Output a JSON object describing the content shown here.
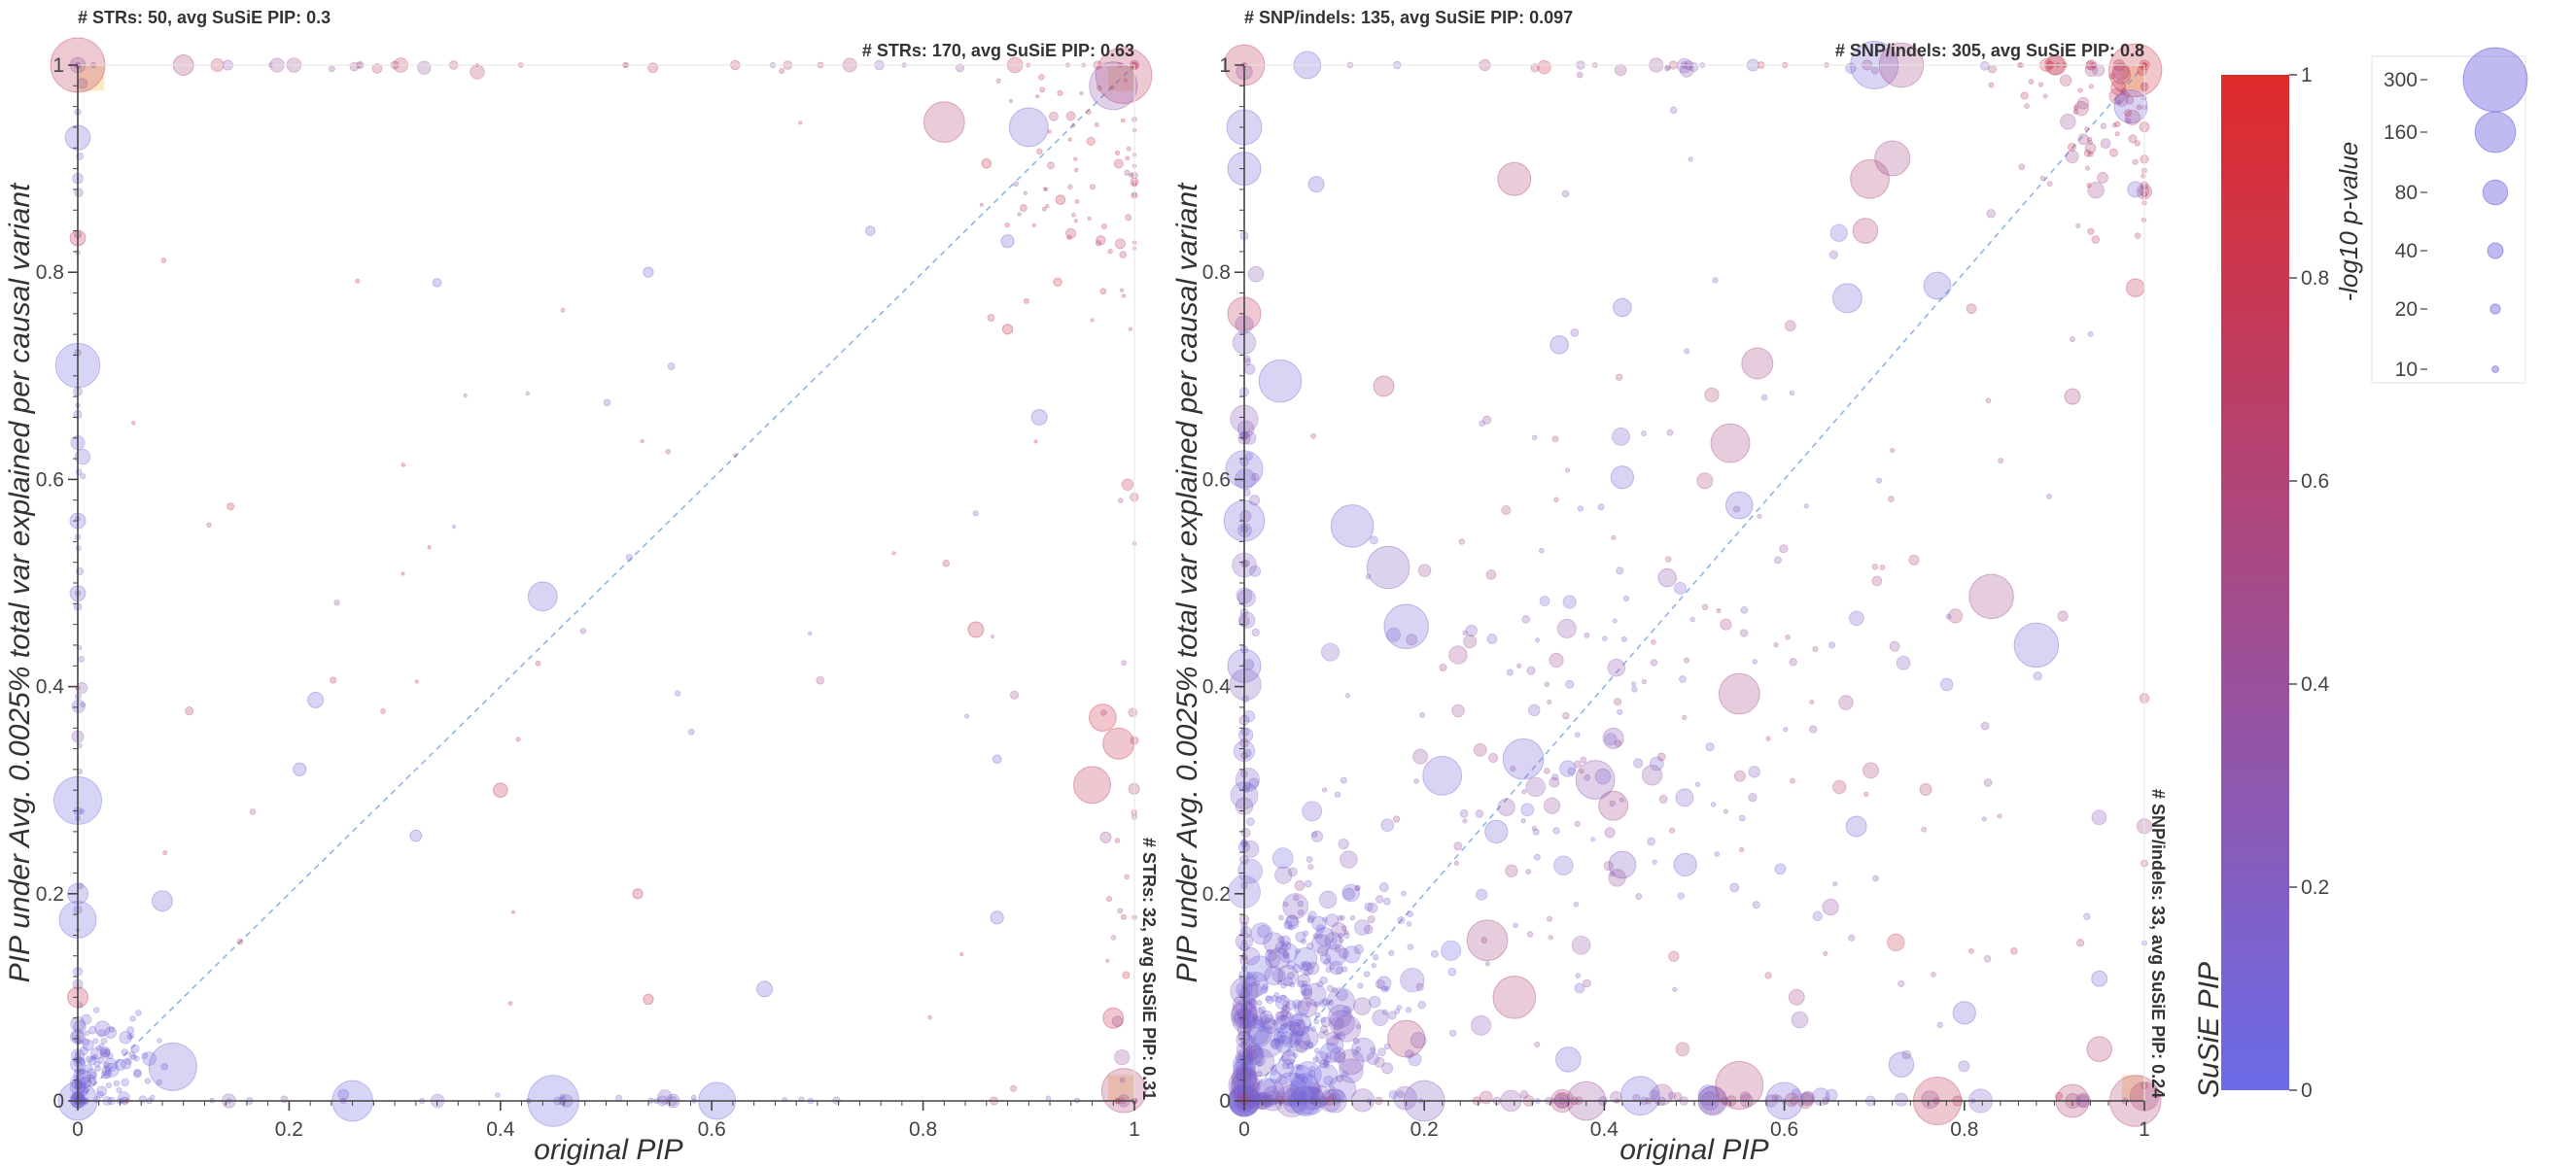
{
  "colors": {
    "low": "#6b6be8",
    "high": "#e02a2a",
    "diagonal": "#8fb4e6",
    "highlight_box": "#fbd896",
    "axis": "#444444"
  },
  "colorbar": {
    "label": "SuSiE PIP",
    "ticks": [
      "0",
      "0.2",
      "0.4",
      "0.6",
      "0.8",
      "1"
    ],
    "tick_values": [
      0,
      0.2,
      0.4,
      0.6,
      0.8,
      1
    ]
  },
  "size_legend": {
    "title": "-log10 p-value",
    "entries": [
      {
        "label": "300",
        "value": 300
      },
      {
        "label": "160",
        "value": 160
      },
      {
        "label": "80",
        "value": 80
      },
      {
        "label": "40",
        "value": 40
      },
      {
        "label": "20",
        "value": 20
      },
      {
        "label": "10",
        "value": 10
      }
    ]
  },
  "chart_data": [
    {
      "type": "scatter",
      "title": "",
      "xlabel": "original PIP",
      "ylabel": "PIP under Avg. 0.0025% total var explained per causal variant",
      "xlim": [
        0,
        1
      ],
      "ylim": [
        0,
        1
      ],
      "x_ticks": [
        "0",
        "0.2",
        "0.4",
        "0.6",
        "0.8",
        "1"
      ],
      "y_ticks": [
        "0",
        "0.2",
        "0.4",
        "0.6",
        "0.8",
        "1"
      ],
      "diagonal": true,
      "grid": false,
      "annotations": {
        "top_left": "# STRs: 50, avg SuSiE PIP: 0.3",
        "top_right": "# STRs: 170, avg SuSiE PIP: 0.63",
        "bottom_right": "# STRs: 32, avg SuSiE PIP: 0.31"
      },
      "seed": 11,
      "points": [
        {
          "x": 0.0,
          "y": 1.0,
          "p": 240,
          "c": 0.72
        },
        {
          "x": 0.1,
          "y": 1.0,
          "p": 60,
          "c": 0.55
        },
        {
          "x": 0.82,
          "y": 0.945,
          "p": 160,
          "c": 0.6
        },
        {
          "x": 0.9,
          "y": 0.94,
          "p": 150,
          "c": 0.1
        },
        {
          "x": 0.99,
          "y": 0.99,
          "p": 250,
          "c": 0.7
        },
        {
          "x": 0.98,
          "y": 0.98,
          "p": 200,
          "c": 0.3
        },
        {
          "x": 0.0,
          "y": 0.71,
          "p": 180,
          "c": 0.05
        },
        {
          "x": 0.0,
          "y": 0.93,
          "p": 80,
          "c": 0.1
        },
        {
          "x": 0.0,
          "y": 0.29,
          "p": 200,
          "c": 0.05
        },
        {
          "x": 0.0,
          "y": 0.175,
          "p": 140,
          "c": 0.05
        },
        {
          "x": 0.44,
          "y": 0.487,
          "p": 100,
          "c": 0.1
        },
        {
          "x": 0.97,
          "y": 0.37,
          "p": 90,
          "c": 0.85
        },
        {
          "x": 0.96,
          "y": 0.305,
          "p": 140,
          "c": 0.75
        },
        {
          "x": 0.985,
          "y": 0.345,
          "p": 110,
          "c": 0.8
        },
        {
          "x": 0.09,
          "y": 0.033,
          "p": 200,
          "c": 0.1
        },
        {
          "x": 0.08,
          "y": 0.193,
          "p": 60,
          "c": 0.1
        },
        {
          "x": 0.45,
          "y": 0.0,
          "p": 220,
          "c": 0.05
        },
        {
          "x": 0.26,
          "y": 0.0,
          "p": 160,
          "c": 0.05
        },
        {
          "x": 0.605,
          "y": 0.0,
          "p": 140,
          "c": 0.05
        },
        {
          "x": 0.99,
          "y": 0.01,
          "p": 180,
          "c": 0.6
        },
        {
          "x": 0.98,
          "y": 0.08,
          "p": 60,
          "c": 0.8
        },
        {
          "x": 0.91,
          "y": 0.66,
          "p": 40,
          "c": 0.1
        },
        {
          "x": 0.88,
          "y": 0.83,
          "p": 30,
          "c": 0.1
        },
        {
          "x": 0.85,
          "y": 0.455,
          "p": 40,
          "c": 0.75
        },
        {
          "x": 0.88,
          "y": 0.745,
          "p": 20,
          "c": 0.8
        },
        {
          "x": 0.21,
          "y": 0.32,
          "p": 30,
          "c": 0.1
        },
        {
          "x": 0.225,
          "y": 0.387,
          "p": 40,
          "c": 0.1
        },
        {
          "x": 0.4,
          "y": 0.3,
          "p": 35,
          "c": 0.8
        },
        {
          "x": 0.32,
          "y": 0.256,
          "p": 25,
          "c": 0.1
        },
        {
          "x": 0.54,
          "y": 0.8,
          "p": 20,
          "c": 0.1
        },
        {
          "x": 0.34,
          "y": 0.79,
          "p": 15,
          "c": 0.1
        },
        {
          "x": 0.0,
          "y": 0.833,
          "p": 40,
          "c": 0.8
        },
        {
          "x": 0.0,
          "y": 0.56,
          "p": 40,
          "c": 0.1
        },
        {
          "x": 0.0,
          "y": 0.49,
          "p": 40,
          "c": 0.1
        },
        {
          "x": 0.0,
          "y": 0.1,
          "p": 60,
          "c": 0.8
        },
        {
          "x": 0.0,
          "y": 0.2,
          "p": 60,
          "c": 0.1
        },
        {
          "x": 0.53,
          "y": 0.2,
          "p": 20,
          "c": 0.8
        },
        {
          "x": 0.87,
          "y": 0.177,
          "p": 30,
          "c": 0.1
        },
        {
          "x": 0.65,
          "y": 0.108,
          "p": 40,
          "c": 0.1
        },
        {
          "x": 0.54,
          "y": 0.098,
          "p": 20,
          "c": 0.8
        },
        {
          "x": 0.87,
          "y": 0.33,
          "p": 15,
          "c": 0.1
        },
        {
          "x": 0.75,
          "y": 0.84,
          "p": 18,
          "c": 0.1
        },
        {
          "x": 0.86,
          "y": 0.905,
          "p": 18,
          "c": 0.8
        },
        {
          "x": 0.93,
          "y": 0.87,
          "p": 18,
          "c": 0.8
        },
        {
          "x": 0.0,
          "y": 0.0,
          "p": 150,
          "c": 0.05
        }
      ],
      "clusters": [
        {
          "cx": 0.02,
          "cy": 0.03,
          "sx": 0.025,
          "sy": 0.025,
          "n": 120,
          "pmin": 5,
          "pmax": 40,
          "cmin": 0.02,
          "cmax": 0.2
        },
        {
          "cx": 0.0,
          "cy": 0.5,
          "sx": 0.003,
          "sy": 0.3,
          "n": 40,
          "pmin": 5,
          "pmax": 40,
          "cmin": 0.02,
          "cmax": 0.3
        },
        {
          "cx": 0.95,
          "cy": 0.9,
          "sx": 0.05,
          "sy": 0.07,
          "n": 80,
          "pmin": 2,
          "pmax": 20,
          "cmin": 0.4,
          "cmax": 0.9
        },
        {
          "cx": 0.5,
          "cy": 0.5,
          "sx": 0.3,
          "sy": 0.3,
          "n": 60,
          "pmin": 2,
          "pmax": 15,
          "cmin": 0.05,
          "cmax": 0.9
        },
        {
          "cx": 0.99,
          "cy": 0.2,
          "sx": 0.01,
          "sy": 0.2,
          "n": 25,
          "pmin": 5,
          "pmax": 40,
          "cmin": 0.3,
          "cmax": 0.9
        },
        {
          "cx": 0.5,
          "cy": 0.0,
          "sx": 0.3,
          "sy": 0.003,
          "n": 40,
          "pmin": 5,
          "pmax": 40,
          "cmin": 0.02,
          "cmax": 0.3
        },
        {
          "cx": 0.5,
          "cy": 1.0,
          "sx": 0.3,
          "sy": 0.003,
          "n": 30,
          "pmin": 5,
          "pmax": 40,
          "cmin": 0.2,
          "cmax": 0.9
        }
      ],
      "highlights": [
        {
          "x0": 0.0,
          "x1": 0.025,
          "y0": 0.975,
          "y1": 1.0
        },
        {
          "x0": 0.975,
          "x1": 1.0,
          "y0": 0.975,
          "y1": 1.0
        },
        {
          "x0": 0.975,
          "x1": 1.0,
          "y0": 0.0,
          "y1": 0.025
        }
      ]
    },
    {
      "type": "scatter",
      "title": "",
      "xlabel": "original PIP",
      "ylabel": "PIP under Avg. 0.0025% total var explained per causal variant",
      "xlim": [
        0,
        1
      ],
      "ylim": [
        0,
        1
      ],
      "x_ticks": [
        "0",
        "0.2",
        "0.4",
        "0.6",
        "0.8",
        "1"
      ],
      "y_ticks": [
        "0",
        "0.2",
        "0.4",
        "0.6",
        "0.8",
        "1"
      ],
      "diagonal": true,
      "grid": false,
      "annotations": {
        "top_left": "# SNP/indels: 135, avg SuSiE PIP: 0.097",
        "top_right": "# SNP/indels: 305, avg SuSiE PIP: 0.8",
        "bottom_right": "# SNP/indels: 33, avg SuSiE PIP: 0.24"
      },
      "seed": 29,
      "points": [
        {
          "x": 0.0,
          "y": 1.0,
          "p": 160,
          "c": 0.75
        },
        {
          "x": 0.07,
          "y": 1.0,
          "p": 90,
          "c": 0.1
        },
        {
          "x": 0.7,
          "y": 1.0,
          "p": 200,
          "c": 0.1
        },
        {
          "x": 0.73,
          "y": 1.0,
          "p": 180,
          "c": 0.5
        },
        {
          "x": 0.99,
          "y": 0.995,
          "p": 230,
          "c": 0.85
        },
        {
          "x": 0.985,
          "y": 0.96,
          "p": 120,
          "c": 0.1
        },
        {
          "x": 0.3,
          "y": 0.89,
          "p": 120,
          "c": 0.6
        },
        {
          "x": 0.695,
          "y": 0.89,
          "p": 150,
          "c": 0.6
        },
        {
          "x": 0.72,
          "y": 0.91,
          "p": 130,
          "c": 0.5
        },
        {
          "x": 0.69,
          "y": 0.84,
          "p": 80,
          "c": 0.6
        },
        {
          "x": 0.155,
          "y": 0.69,
          "p": 60,
          "c": 0.6
        },
        {
          "x": 0.0,
          "y": 0.76,
          "p": 120,
          "c": 0.7
        },
        {
          "x": 0.04,
          "y": 0.695,
          "p": 170,
          "c": 0.1
        },
        {
          "x": 0.12,
          "y": 0.555,
          "p": 170,
          "c": 0.1
        },
        {
          "x": 0.16,
          "y": 0.515,
          "p": 170,
          "c": 0.2
        },
        {
          "x": 0.18,
          "y": 0.458,
          "p": 180,
          "c": 0.1
        },
        {
          "x": 0.0,
          "y": 0.61,
          "p": 140,
          "c": 0.1
        },
        {
          "x": 0.0,
          "y": 0.56,
          "p": 160,
          "c": 0.1
        },
        {
          "x": 0.54,
          "y": 0.635,
          "p": 150,
          "c": 0.5
        },
        {
          "x": 0.55,
          "y": 0.575,
          "p": 90,
          "c": 0.1
        },
        {
          "x": 0.57,
          "y": 0.712,
          "p": 110,
          "c": 0.5
        },
        {
          "x": 0.77,
          "y": 0.787,
          "p": 90,
          "c": 0.1
        },
        {
          "x": 0.67,
          "y": 0.775,
          "p": 100,
          "c": 0.1
        },
        {
          "x": 0.42,
          "y": 0.602,
          "p": 70,
          "c": 0.1
        },
        {
          "x": 0.83,
          "y": 0.487,
          "p": 180,
          "c": 0.5
        },
        {
          "x": 0.88,
          "y": 0.44,
          "p": 180,
          "c": 0.1
        },
        {
          "x": 0.55,
          "y": 0.393,
          "p": 160,
          "c": 0.5
        },
        {
          "x": 0.22,
          "y": 0.314,
          "p": 150,
          "c": 0.1
        },
        {
          "x": 0.31,
          "y": 0.33,
          "p": 160,
          "c": 0.1
        },
        {
          "x": 0.39,
          "y": 0.31,
          "p": 150,
          "c": 0.3
        },
        {
          "x": 0.41,
          "y": 0.285,
          "p": 100,
          "c": 0.5
        },
        {
          "x": 0.27,
          "y": 0.155,
          "p": 160,
          "c": 0.5
        },
        {
          "x": 0.3,
          "y": 0.1,
          "p": 170,
          "c": 0.6
        },
        {
          "x": 0.18,
          "y": 0.06,
          "p": 140,
          "c": 0.6
        },
        {
          "x": 0.55,
          "y": 0.015,
          "p": 200,
          "c": 0.6
        },
        {
          "x": 0.44,
          "y": 0.005,
          "p": 150,
          "c": 0.1
        },
        {
          "x": 0.38,
          "y": 0.0,
          "p": 150,
          "c": 0.4
        },
        {
          "x": 0.77,
          "y": 0.0,
          "p": 200,
          "c": 0.75
        },
        {
          "x": 0.2,
          "y": 0.0,
          "p": 160,
          "c": 0.2
        },
        {
          "x": 0.6,
          "y": 0.0,
          "p": 140,
          "c": 0.1
        },
        {
          "x": 0.92,
          "y": 0.0,
          "p": 120,
          "c": 0.6
        },
        {
          "x": 0.99,
          "y": 0.0,
          "p": 220,
          "c": 0.6
        },
        {
          "x": 0.0,
          "y": 0.9,
          "p": 120,
          "c": 0.1
        },
        {
          "x": 0.0,
          "y": 0.94,
          "p": 130,
          "c": 0.1
        },
        {
          "x": 0.0,
          "y": 0.42,
          "p": 120,
          "c": 0.1
        },
        {
          "x": 0.42,
          "y": 0.228,
          "p": 90,
          "c": 0.2
        },
        {
          "x": 0.49,
          "y": 0.228,
          "p": 70,
          "c": 0.1
        },
        {
          "x": 0.36,
          "y": 0.04,
          "p": 80,
          "c": 0.1
        },
        {
          "x": 0.73,
          "y": 0.035,
          "p": 80,
          "c": 0.1
        },
        {
          "x": 0.95,
          "y": 0.05,
          "p": 80,
          "c": 0.6
        },
        {
          "x": 0.8,
          "y": 0.085,
          "p": 70,
          "c": 0.1
        },
        {
          "x": 0.68,
          "y": 0.265,
          "p": 60,
          "c": 0.1
        },
        {
          "x": 0.28,
          "y": 0.26,
          "p": 70,
          "c": 0.1
        },
        {
          "x": 0.41,
          "y": 0.35,
          "p": 60,
          "c": 0.3
        },
        {
          "x": 0.47,
          "y": 0.505,
          "p": 50,
          "c": 0.3
        },
        {
          "x": 0.35,
          "y": 0.73,
          "p": 50,
          "c": 0.1
        },
        {
          "x": 0.42,
          "y": 0.766,
          "p": 50,
          "c": 0.1
        },
        {
          "x": 0.08,
          "y": 0.885,
          "p": 40,
          "c": 0.1
        },
        {
          "x": 0.92,
          "y": 0.68,
          "p": 40,
          "c": 0.5
        },
        {
          "x": 0.99,
          "y": 0.785,
          "p": 50,
          "c": 0.8
        },
        {
          "x": 0.95,
          "y": 0.118,
          "p": 40,
          "c": 0.1
        },
        {
          "x": 0.99,
          "y": 0.88,
          "p": 40,
          "c": 0.1
        }
      ],
      "clusters": [
        {
          "cx": 0.03,
          "cy": 0.05,
          "sx": 0.04,
          "sy": 0.05,
          "n": 260,
          "pmin": 5,
          "pmax": 120,
          "cmin": 0.02,
          "cmax": 0.25
        },
        {
          "cx": 0.1,
          "cy": 0.12,
          "sx": 0.05,
          "sy": 0.06,
          "n": 180,
          "pmin": 5,
          "pmax": 90,
          "cmin": 0.02,
          "cmax": 0.3
        },
        {
          "cx": 0.0,
          "cy": 0.3,
          "sx": 0.006,
          "sy": 0.25,
          "n": 90,
          "pmin": 10,
          "pmax": 120,
          "cmin": 0.02,
          "cmax": 0.3
        },
        {
          "cx": 0.3,
          "cy": 0.3,
          "sx": 0.12,
          "sy": 0.12,
          "n": 120,
          "pmin": 4,
          "pmax": 60,
          "cmin": 0.05,
          "cmax": 0.5
        },
        {
          "cx": 0.55,
          "cy": 0.55,
          "sx": 0.18,
          "sy": 0.18,
          "n": 90,
          "pmin": 4,
          "pmax": 50,
          "cmin": 0.1,
          "cmax": 0.7
        },
        {
          "cx": 0.95,
          "cy": 0.95,
          "sx": 0.05,
          "sy": 0.05,
          "n": 90,
          "pmin": 4,
          "pmax": 60,
          "cmin": 0.4,
          "cmax": 0.9
        },
        {
          "cx": 0.5,
          "cy": 0.0,
          "sx": 0.25,
          "sy": 0.004,
          "n": 60,
          "pmin": 10,
          "pmax": 120,
          "cmin": 0.05,
          "cmax": 0.7
        },
        {
          "cx": 0.7,
          "cy": 0.2,
          "sx": 0.2,
          "sy": 0.15,
          "n": 60,
          "pmin": 4,
          "pmax": 50,
          "cmin": 0.05,
          "cmax": 0.8
        },
        {
          "cx": 0.5,
          "cy": 1.0,
          "sx": 0.3,
          "sy": 0.004,
          "n": 30,
          "pmin": 5,
          "pmax": 50,
          "cmin": 0.1,
          "cmax": 0.9
        }
      ],
      "highlights": [
        {
          "x0": 0.975,
          "x1": 1.0,
          "y0": 0.975,
          "y1": 1.0
        },
        {
          "x0": 0.975,
          "x1": 1.0,
          "y0": 0.0,
          "y1": 0.025
        }
      ]
    }
  ]
}
